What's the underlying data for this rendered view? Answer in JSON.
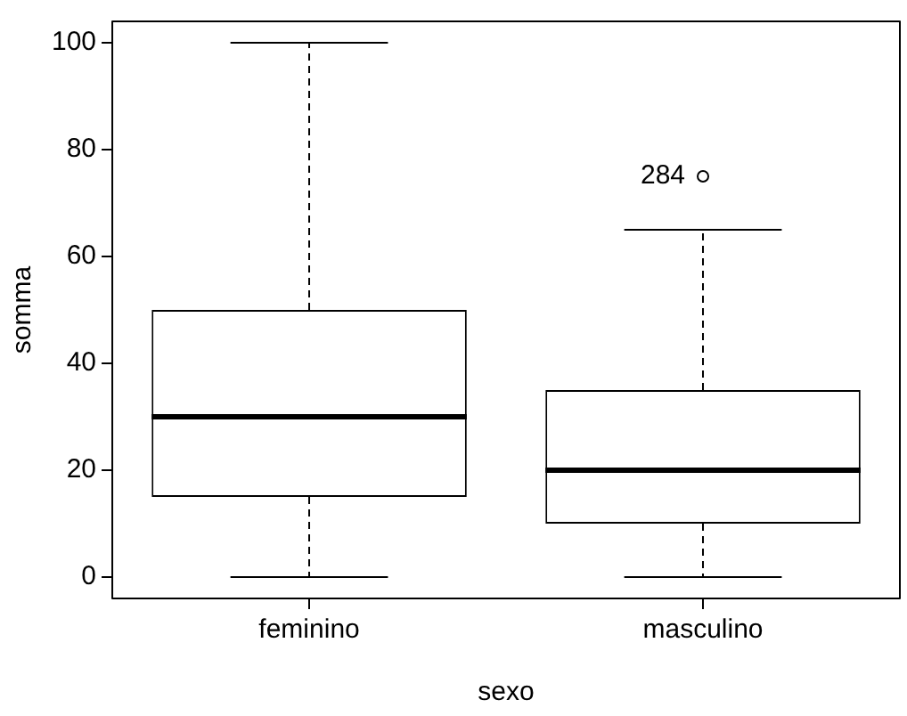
{
  "chart_data": {
    "type": "box",
    "xlabel": "sexo",
    "ylabel": "somma",
    "categories": [
      "feminino",
      "masculino"
    ],
    "boxes": [
      {
        "low": 0,
        "q1": 15,
        "median": 30,
        "q3": 50,
        "high": 100
      },
      {
        "low": 0,
        "q1": 10,
        "median": 20,
        "q3": 35,
        "high": 65,
        "outliers": [
          75
        ]
      }
    ],
    "ylim": [
      -4,
      104
    ],
    "yticks": [
      0,
      20,
      40,
      60,
      80,
      100
    ],
    "grid": false,
    "legend": false,
    "annotations": [
      "284"
    ]
  }
}
